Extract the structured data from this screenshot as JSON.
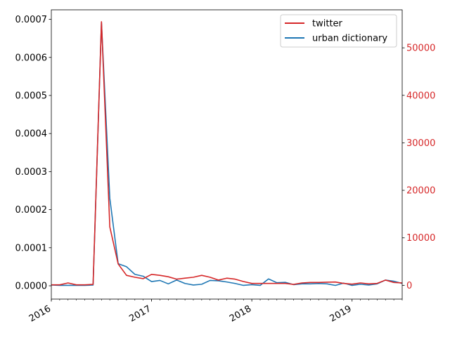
{
  "chart_data": {
    "type": "line",
    "title": "",
    "xlabel": "",
    "ylabel": "",
    "x_tick_labels": [
      "2016",
      "2017",
      "2018",
      "2019"
    ],
    "x_range": [
      "2016-01",
      "2019-07"
    ],
    "x": [
      "2016-01",
      "2016-02",
      "2016-03",
      "2016-04",
      "2016-05",
      "2016-06",
      "2016-07",
      "2016-08",
      "2016-09",
      "2016-10",
      "2016-11",
      "2016-12",
      "2017-01",
      "2017-02",
      "2017-03",
      "2017-04",
      "2017-05",
      "2017-06",
      "2017-07",
      "2017-08",
      "2017-09",
      "2017-10",
      "2017-11",
      "2017-12",
      "2018-01",
      "2018-02",
      "2018-03",
      "2018-04",
      "2018-05",
      "2018-06",
      "2018-07",
      "2018-08",
      "2018-09",
      "2018-10",
      "2018-11",
      "2018-12",
      "2019-01",
      "2019-02",
      "2019-03",
      "2019-04",
      "2019-05",
      "2019-06",
      "2019-07"
    ],
    "left_axis": {
      "ylim": [
        -3.5e-05,
        0.000725
      ],
      "ticks": [
        "0.0000",
        "0.0001",
        "0.0002",
        "0.0003",
        "0.0004",
        "0.0005",
        "0.0006",
        "0.0007"
      ],
      "tick_values": [
        0,
        0.0001,
        0.0002,
        0.0003,
        0.0004,
        0.0005,
        0.0006,
        0.0007
      ],
      "color": "#000000"
    },
    "right_axis": {
      "ylim": [
        -2900,
        58000
      ],
      "ticks": [
        "0",
        "10000",
        "20000",
        "30000",
        "40000",
        "50000"
      ],
      "tick_values": [
        0,
        10000,
        20000,
        30000,
        40000,
        50000
      ],
      "color": "#d62728"
    },
    "series": [
      {
        "name": "twitter",
        "axis": "right",
        "color": "#d62728",
        "values": [
          100,
          100,
          500,
          100,
          100,
          200,
          55500,
          12300,
          4500,
          2100,
          1700,
          1400,
          2300,
          2100,
          1800,
          1300,
          1500,
          1700,
          2100,
          1700,
          1100,
          1500,
          1300,
          800,
          400,
          400,
          400,
          400,
          400,
          200,
          500,
          600,
          600,
          650,
          700,
          400,
          250,
          500,
          300,
          400,
          1100,
          600,
          500
        ]
      },
      {
        "name": "urban dictionary",
        "axis": "left",
        "color": "#1f77b4",
        "values": [
          2e-06,
          1e-06,
          1e-06,
          1e-06,
          1e-06,
          2e-06,
          0.000692,
          0.00023,
          5.8e-05,
          5e-05,
          3e-05,
          2.5e-05,
          1.1e-05,
          1.4e-05,
          5e-06,
          1.5e-05,
          6e-06,
          2e-06,
          4e-06,
          1.4e-05,
          1.3e-05,
          1e-05,
          6e-06,
          1e-06,
          3e-06,
          1e-06,
          1.8e-05,
          8e-06,
          9e-06,
          3e-06,
          5e-06,
          5e-06,
          6e-06,
          5e-06,
          1e-06,
          7e-06,
          1e-06,
          4e-06,
          2e-06,
          5e-06,
          1.5e-05,
          1.2e-05,
          6e-06
        ]
      }
    ],
    "legend": {
      "position": "top-right",
      "entries": [
        "twitter",
        "urban dictionary"
      ]
    },
    "grid": false
  }
}
